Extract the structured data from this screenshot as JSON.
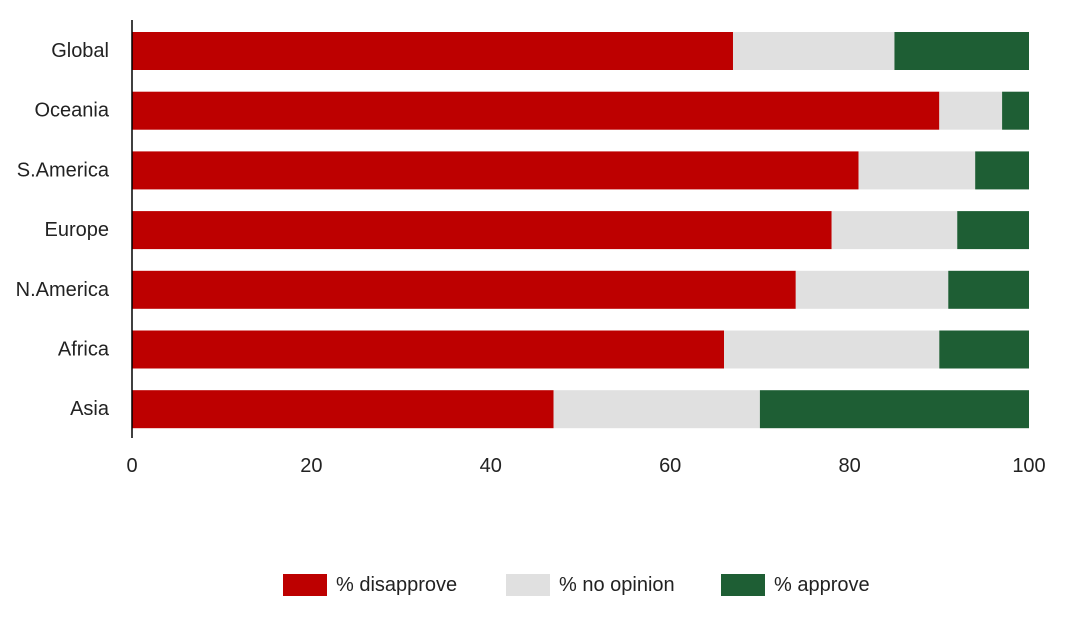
{
  "chart_data": {
    "type": "bar",
    "orientation": "horizontal",
    "stacked": true,
    "categories": [
      "Global",
      "Oceania",
      "S.America",
      "Europe",
      "N.America",
      "Africa",
      "Asia"
    ],
    "series": [
      {
        "name": "% disapprove",
        "color": "#bd0000",
        "values": [
          67,
          90,
          81,
          78,
          74,
          66,
          47
        ]
      },
      {
        "name": "% no opinion",
        "color": "#e0e0e0",
        "values": [
          18,
          7,
          13,
          14,
          17,
          24,
          23
        ]
      },
      {
        "name": "% approve",
        "color": "#1e5e34",
        "values": [
          15,
          3,
          6,
          8,
          9,
          10,
          30
        ]
      }
    ],
    "xlim": [
      0,
      100
    ],
    "xticks": [
      "0",
      "20",
      "40",
      "60",
      "80",
      "100"
    ],
    "grid": false,
    "legend_position": "bottom"
  }
}
